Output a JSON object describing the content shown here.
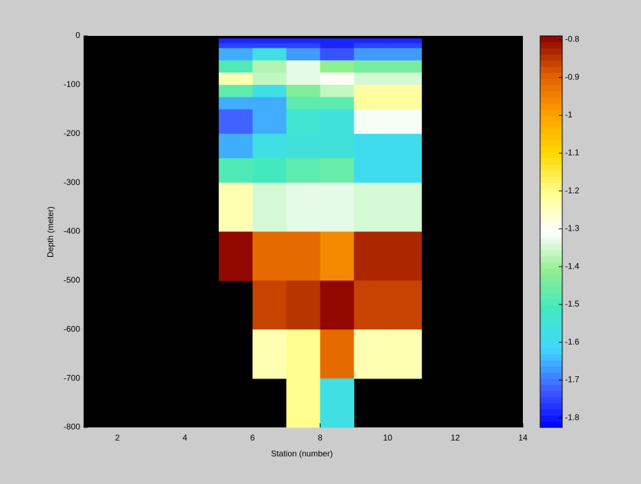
{
  "chart_data": {
    "type": "heatmap",
    "xlabel": "Station (number)",
    "ylabel": "Depth (meter)",
    "x_edges": [
      5,
      6,
      7,
      8,
      9,
      10,
      11
    ],
    "y_edges": [
      -5,
      -15,
      -25,
      -50,
      -75,
      -100,
      -125,
      -150,
      -200,
      -250,
      -300,
      -400,
      -500,
      -600,
      -700,
      -800
    ],
    "values": [
      [
        -1.79,
        -1.79,
        -1.79,
        -1.79,
        -1.79,
        -1.79
      ],
      [
        -1.75,
        -1.75,
        -1.75,
        -1.78,
        -1.75,
        -1.75
      ],
      [
        -1.65,
        -1.58,
        -1.67,
        -1.73,
        -1.67,
        -1.67
      ],
      [
        -1.49,
        -1.38,
        -1.33,
        -1.42,
        -1.44,
        -1.44
      ],
      [
        -1.23,
        -1.37,
        -1.33,
        -1.3,
        -1.34,
        -1.34
      ],
      [
        -1.47,
        -1.57,
        -1.43,
        -1.37,
        -1.22,
        -1.22
      ],
      [
        -1.66,
        -1.65,
        -1.48,
        -1.48,
        -1.22,
        -1.22
      ],
      [
        -1.72,
        -1.65,
        -1.54,
        -1.56,
        -1.32,
        -1.32
      ],
      [
        -1.65,
        -1.57,
        -1.56,
        -1.56,
        -1.59,
        -1.59
      ],
      [
        -1.49,
        -1.51,
        -1.48,
        -1.46,
        -1.59,
        -1.59
      ],
      [
        -1.23,
        -1.35,
        -1.33,
        -1.33,
        -1.35,
        -1.35
      ],
      [
        -0.8,
        -0.91,
        -0.91,
        -0.96,
        -0.83,
        -0.83
      ],
      [
        null,
        -0.87,
        -0.85,
        -0.8,
        -0.86,
        -0.86
      ],
      [
        null,
        -1.23,
        -1.2,
        -0.91,
        -1.23,
        -1.23
      ],
      [
        null,
        null,
        -1.21,
        -1.58,
        null,
        null
      ]
    ],
    "xlim": [
      1,
      14
    ],
    "ylim": [
      -800,
      0
    ],
    "xticks": [
      2,
      4,
      6,
      8,
      10,
      12,
      14
    ],
    "yticks": [
      0,
      -100,
      -200,
      -300,
      -400,
      -500,
      -600,
      -700,
      -800
    ],
    "clim": [
      -1.825,
      -0.79
    ],
    "cticks": [
      -0.8,
      -0.9,
      -1,
      -1.1,
      -1.2,
      -1.3,
      -1.4,
      -1.5,
      -1.6,
      -1.7,
      -1.8
    ],
    "colormap": [
      "#0000ff",
      "#4060ff",
      "#40d8ff",
      "#40e8c0",
      "#90f090",
      "#ffffff",
      "#ffff90",
      "#ffd800",
      "#ffa000",
      "#e06000",
      "#8b0000"
    ],
    "background": "#000000"
  }
}
